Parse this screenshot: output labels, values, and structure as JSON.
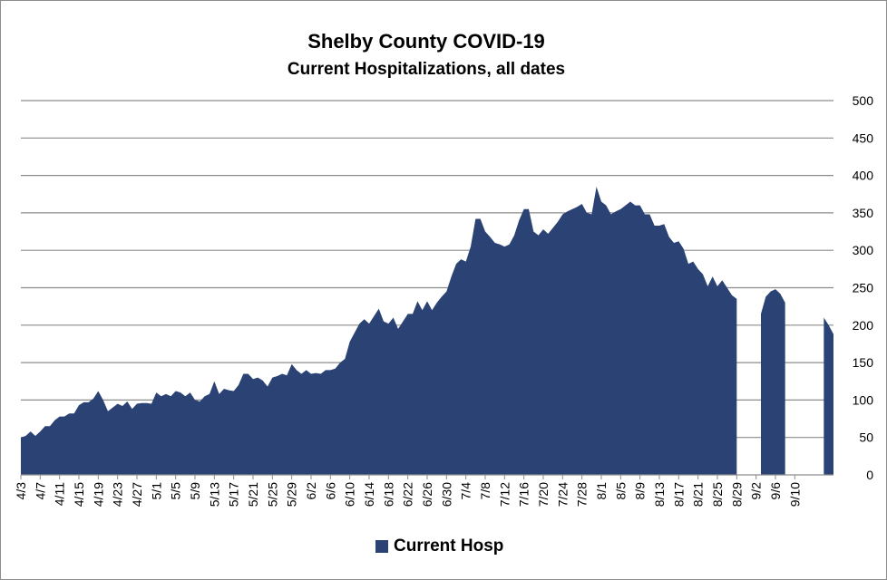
{
  "chart_data": {
    "type": "area",
    "title": "Shelby County COVID-19",
    "subtitle": "Current Hospitalizations, all dates",
    "xlabel": "",
    "ylabel": "",
    "ylim": [
      0,
      500
    ],
    "y_ticks": [
      0,
      50,
      100,
      150,
      200,
      250,
      300,
      350,
      400,
      450,
      500
    ],
    "y_axis_side": "right",
    "grid": true,
    "legend_position": "bottom",
    "x_tick_labels": [
      "4/3",
      "4/7",
      "4/11",
      "4/15",
      "4/19",
      "4/23",
      "4/27",
      "5/1",
      "5/5",
      "5/9",
      "5/13",
      "5/17",
      "5/21",
      "5/25",
      "5/29",
      "6/2",
      "6/6",
      "6/10",
      "6/14",
      "6/18",
      "6/22",
      "6/26",
      "6/30",
      "7/4",
      "7/8",
      "7/12",
      "7/16",
      "7/20",
      "7/24",
      "7/28",
      "8/1",
      "8/5",
      "8/9",
      "8/13",
      "8/17",
      "8/21",
      "8/25",
      "8/29",
      "9/2",
      "9/6",
      "9/10"
    ],
    "x_start": "4/3",
    "series": [
      {
        "name": "Current Hosp",
        "color": "#2b4274",
        "values": [
          50,
          52,
          58,
          52,
          58,
          65,
          65,
          73,
          78,
          78,
          82,
          82,
          93,
          97,
          97,
          102,
          112,
          100,
          85,
          90,
          95,
          92,
          98,
          88,
          95,
          96,
          96,
          95,
          110,
          105,
          108,
          105,
          112,
          110,
          105,
          110,
          100,
          98,
          105,
          108,
          125,
          108,
          115,
          113,
          112,
          120,
          135,
          135,
          128,
          130,
          126,
          118,
          130,
          132,
          135,
          133,
          148,
          140,
          135,
          140,
          135,
          136,
          135,
          140,
          140,
          142,
          150,
          155,
          178,
          190,
          202,
          208,
          202,
          212,
          222,
          205,
          202,
          210,
          195,
          205,
          215,
          215,
          232,
          220,
          232,
          220,
          230,
          238,
          245,
          265,
          282,
          288,
          285,
          305,
          342,
          342,
          325,
          318,
          310,
          308,
          305,
          308,
          320,
          340,
          355,
          355,
          325,
          320,
          328,
          322,
          330,
          338,
          348,
          352,
          355,
          358,
          362,
          350,
          348,
          385,
          365,
          360,
          348,
          352,
          355,
          360,
          365,
          360,
          360,
          348,
          348,
          333,
          333,
          335,
          318,
          310,
          312,
          302,
          282,
          285,
          275,
          268,
          252,
          265,
          252,
          260,
          250,
          240,
          235,
          null,
          null,
          null,
          null,
          215,
          238,
          245,
          248,
          242,
          230,
          null,
          null,
          null,
          null,
          null,
          null,
          null,
          210,
          200,
          188
        ]
      }
    ]
  }
}
